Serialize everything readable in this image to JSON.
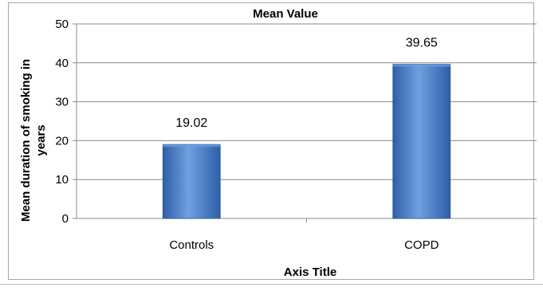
{
  "chart_data": {
    "type": "bar",
    "title": "Mean Value",
    "categories": [
      "Controls",
      "COPD"
    ],
    "values": [
      19.02,
      39.65
    ],
    "data_labels": [
      "19.02",
      "39.65"
    ],
    "xlabel": "Axis Title",
    "ylabel_lines": [
      "Mean duration of smoking in",
      "years"
    ],
    "ylim": [
      0,
      50
    ],
    "yticks": [
      "0",
      "10",
      "20",
      "30",
      "40",
      "50"
    ],
    "grid": true,
    "legend": "none",
    "bar_color": "#4a7fcb",
    "bar_color_dark": "#2e5ea8",
    "bar_color_light": "#6fa0e0"
  }
}
